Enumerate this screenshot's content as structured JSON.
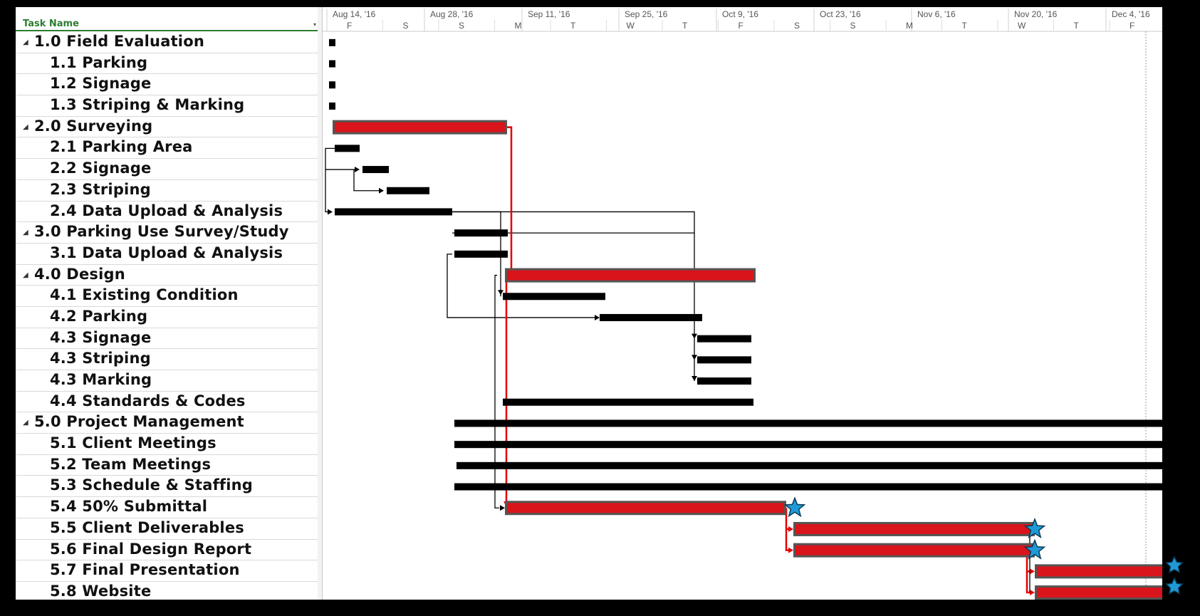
{
  "header": {
    "task_name_label": "Task Name"
  },
  "timescale": {
    "major": [
      "Aug 14, '16",
      "Aug 28, '16",
      "Sep 11, '16",
      "Sep 25, '16",
      "Oct 9, '16",
      "Oct 23, '16",
      "Nov 6, '16",
      "Nov 20, '16",
      "Dec 4, '16"
    ],
    "minor": [
      "F",
      "S",
      "S",
      "M",
      "T",
      "W",
      "T",
      "F",
      "S",
      "S",
      "M",
      "T",
      "W",
      "T",
      "F"
    ]
  },
  "tasks": [
    {
      "name": "1.0 Field Evaluation",
      "summary": true
    },
    {
      "name": "1.1 Parking",
      "summary": false
    },
    {
      "name": "1.2 Signage",
      "summary": false
    },
    {
      "name": "1.3 Striping & Marking",
      "summary": false
    },
    {
      "name": "2.0 Surveying",
      "summary": true
    },
    {
      "name": "2.1 Parking Area",
      "summary": false
    },
    {
      "name": "2.2 Signage",
      "summary": false
    },
    {
      "name": "2.3 Striping",
      "summary": false
    },
    {
      "name": "2.4 Data Upload & Analysis",
      "summary": false
    },
    {
      "name": "3.0 Parking Use Survey/Study",
      "summary": true
    },
    {
      "name": "3.1 Data Upload & Analysis",
      "summary": false
    },
    {
      "name": "4.0 Design",
      "summary": true
    },
    {
      "name": "4.1 Existing Condition",
      "summary": false
    },
    {
      "name": "4.2 Parking",
      "summary": false
    },
    {
      "name": "4.3 Signage",
      "summary": false
    },
    {
      "name": "4.3 Striping",
      "summary": false
    },
    {
      "name": "4.3 Marking",
      "summary": false
    },
    {
      "name": "4.4 Standards & Codes",
      "summary": false
    },
    {
      "name": "5.0 Project Management",
      "summary": true
    },
    {
      "name": "5.1 Client Meetings",
      "summary": false
    },
    {
      "name": "5.2 Team Meetings",
      "summary": false
    },
    {
      "name": "5.3 Schedule & Staffing",
      "summary": false
    },
    {
      "name": "5.4 50% Submittal",
      "summary": false
    },
    {
      "name": "5.5 Client Deliverables",
      "summary": false
    },
    {
      "name": "5.6 Final Design Report",
      "summary": false
    },
    {
      "name": "5.7 Final Presentation",
      "summary": false
    },
    {
      "name": "5.8 Website",
      "summary": false
    }
  ],
  "colors": {
    "critical_bar": "#d9141b",
    "critical_border": "#555555",
    "normal_bar": "#000000",
    "link_line": "#000000",
    "critical_link": "#e60000",
    "milestone_star": "#1f9ad6",
    "header_green": "#2f7d32"
  }
}
